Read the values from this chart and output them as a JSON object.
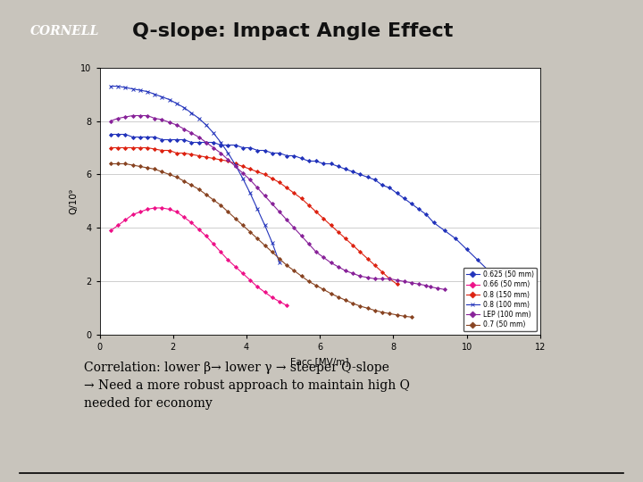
{
  "title": "Q-slope: Impact Angle Effect",
  "bg_color": "#c8c4bc",
  "plot_bg": "#ffffff",
  "xlabel": "Eacc [MV/m]",
  "ylabel": "Q/10⁹",
  "xlim": [
    0,
    12
  ],
  "ylim": [
    0,
    10
  ],
  "yticks": [
    0,
    2,
    4,
    6,
    8,
    10
  ],
  "xticks": [
    0,
    2,
    4,
    6,
    8,
    10,
    12
  ],
  "series": [
    {
      "label": "0.625 (50 mm)",
      "color": "#2233bb",
      "marker": "D",
      "x": [
        0.3,
        0.5,
        0.7,
        0.9,
        1.1,
        1.3,
        1.5,
        1.7,
        1.9,
        2.1,
        2.3,
        2.5,
        2.7,
        2.9,
        3.1,
        3.3,
        3.5,
        3.7,
        3.9,
        4.1,
        4.3,
        4.5,
        4.7,
        4.9,
        5.1,
        5.3,
        5.5,
        5.7,
        5.9,
        6.1,
        6.3,
        6.5,
        6.7,
        6.9,
        7.1,
        7.3,
        7.5,
        7.7,
        7.9,
        8.1,
        8.3,
        8.5,
        8.7,
        8.9,
        9.1,
        9.4,
        9.7,
        10.0,
        10.3,
        10.6,
        10.8
      ],
      "y": [
        7.5,
        7.5,
        7.5,
        7.4,
        7.4,
        7.4,
        7.4,
        7.3,
        7.3,
        7.3,
        7.3,
        7.2,
        7.2,
        7.2,
        7.2,
        7.1,
        7.1,
        7.1,
        7.0,
        7.0,
        6.9,
        6.9,
        6.8,
        6.8,
        6.7,
        6.7,
        6.6,
        6.5,
        6.5,
        6.4,
        6.4,
        6.3,
        6.2,
        6.1,
        6.0,
        5.9,
        5.8,
        5.6,
        5.5,
        5.3,
        5.1,
        4.9,
        4.7,
        4.5,
        4.2,
        3.9,
        3.6,
        3.2,
        2.8,
        2.4,
        2.1
      ]
    },
    {
      "label": "0.66 (50 mm)",
      "color": "#ee1188",
      "marker": "D",
      "x": [
        0.3,
        0.5,
        0.7,
        0.9,
        1.1,
        1.3,
        1.5,
        1.7,
        1.9,
        2.1,
        2.3,
        2.5,
        2.7,
        2.9,
        3.1,
        3.3,
        3.5,
        3.7,
        3.9,
        4.1,
        4.3,
        4.5,
        4.7,
        4.9,
        5.1
      ],
      "y": [
        3.9,
        4.1,
        4.3,
        4.5,
        4.6,
        4.7,
        4.75,
        4.75,
        4.7,
        4.6,
        4.4,
        4.2,
        3.95,
        3.7,
        3.4,
        3.1,
        2.8,
        2.55,
        2.3,
        2.05,
        1.8,
        1.6,
        1.4,
        1.25,
        1.1
      ]
    },
    {
      "label": "0.8 (150 mm)",
      "color": "#dd2211",
      "marker": "D",
      "x": [
        0.3,
        0.5,
        0.7,
        0.9,
        1.1,
        1.3,
        1.5,
        1.7,
        1.9,
        2.1,
        2.3,
        2.5,
        2.7,
        2.9,
        3.1,
        3.3,
        3.5,
        3.7,
        3.9,
        4.1,
        4.3,
        4.5,
        4.7,
        4.9,
        5.1,
        5.3,
        5.5,
        5.7,
        5.9,
        6.1,
        6.3,
        6.5,
        6.7,
        6.9,
        7.1,
        7.3,
        7.5,
        7.7,
        7.9,
        8.1
      ],
      "y": [
        7.0,
        7.0,
        7.0,
        7.0,
        7.0,
        7.0,
        6.95,
        6.9,
        6.9,
        6.8,
        6.8,
        6.75,
        6.7,
        6.65,
        6.6,
        6.55,
        6.5,
        6.4,
        6.3,
        6.2,
        6.1,
        6.0,
        5.85,
        5.7,
        5.5,
        5.3,
        5.1,
        4.85,
        4.6,
        4.35,
        4.1,
        3.85,
        3.6,
        3.35,
        3.1,
        2.85,
        2.6,
        2.35,
        2.1,
        1.9
      ]
    },
    {
      "label": "0.8 (100 mm)",
      "color": "#2233bb",
      "marker": "x",
      "x": [
        0.3,
        0.5,
        0.7,
        0.9,
        1.1,
        1.3,
        1.5,
        1.7,
        1.9,
        2.1,
        2.3,
        2.5,
        2.7,
        2.9,
        3.1,
        3.3,
        3.5,
        3.7,
        3.9,
        4.1,
        4.3,
        4.5,
        4.7,
        4.9
      ],
      "y": [
        9.3,
        9.3,
        9.25,
        9.2,
        9.15,
        9.1,
        9.0,
        8.9,
        8.8,
        8.65,
        8.5,
        8.3,
        8.1,
        7.85,
        7.55,
        7.2,
        6.8,
        6.35,
        5.85,
        5.3,
        4.7,
        4.1,
        3.45,
        2.7
      ]
    },
    {
      "label": "LEP (100 mm)",
      "color": "#882299",
      "marker": "D",
      "x": [
        0.3,
        0.5,
        0.7,
        0.9,
        1.1,
        1.3,
        1.5,
        1.7,
        1.9,
        2.1,
        2.3,
        2.5,
        2.7,
        2.9,
        3.1,
        3.3,
        3.5,
        3.7,
        3.9,
        4.1,
        4.3,
        4.5,
        4.7,
        4.9,
        5.1,
        5.3,
        5.5,
        5.7,
        5.9,
        6.1,
        6.3,
        6.5,
        6.7,
        6.9,
        7.1,
        7.3,
        7.5,
        7.7,
        7.9,
        8.1,
        8.3,
        8.5,
        8.7,
        8.9,
        9.0,
        9.2,
        9.4
      ],
      "y": [
        8.0,
        8.1,
        8.15,
        8.2,
        8.2,
        8.2,
        8.1,
        8.05,
        7.95,
        7.85,
        7.7,
        7.55,
        7.4,
        7.2,
        7.0,
        6.8,
        6.55,
        6.3,
        6.05,
        5.8,
        5.5,
        5.2,
        4.9,
        4.6,
        4.3,
        4.0,
        3.7,
        3.4,
        3.1,
        2.9,
        2.7,
        2.55,
        2.4,
        2.3,
        2.2,
        2.15,
        2.1,
        2.1,
        2.1,
        2.05,
        2.0,
        1.95,
        1.9,
        1.85,
        1.8,
        1.75,
        1.7
      ]
    },
    {
      "label": "0.7 (50 mm)",
      "color": "#884422",
      "marker": "D",
      "x": [
        0.3,
        0.5,
        0.7,
        0.9,
        1.1,
        1.3,
        1.5,
        1.7,
        1.9,
        2.1,
        2.3,
        2.5,
        2.7,
        2.9,
        3.1,
        3.3,
        3.5,
        3.7,
        3.9,
        4.1,
        4.3,
        4.5,
        4.7,
        4.9,
        5.1,
        5.3,
        5.5,
        5.7,
        5.9,
        6.1,
        6.3,
        6.5,
        6.7,
        6.9,
        7.1,
        7.3,
        7.5,
        7.7,
        7.9,
        8.1,
        8.3,
        8.5
      ],
      "y": [
        6.4,
        6.4,
        6.4,
        6.35,
        6.3,
        6.25,
        6.2,
        6.1,
        6.0,
        5.9,
        5.75,
        5.6,
        5.45,
        5.25,
        5.05,
        4.85,
        4.6,
        4.35,
        4.1,
        3.85,
        3.6,
        3.35,
        3.1,
        2.85,
        2.6,
        2.4,
        2.2,
        2.0,
        1.85,
        1.7,
        1.55,
        1.42,
        1.3,
        1.18,
        1.08,
        1.0,
        0.92,
        0.85,
        0.8,
        0.75,
        0.7,
        0.67
      ]
    }
  ],
  "cornell_color": "#aa0000",
  "text_lines": [
    "Correlation: lower β→ lower γ → steeper Q-slope",
    "→ Need a more robust approach to maintain high Q",
    "needed for economy"
  ]
}
